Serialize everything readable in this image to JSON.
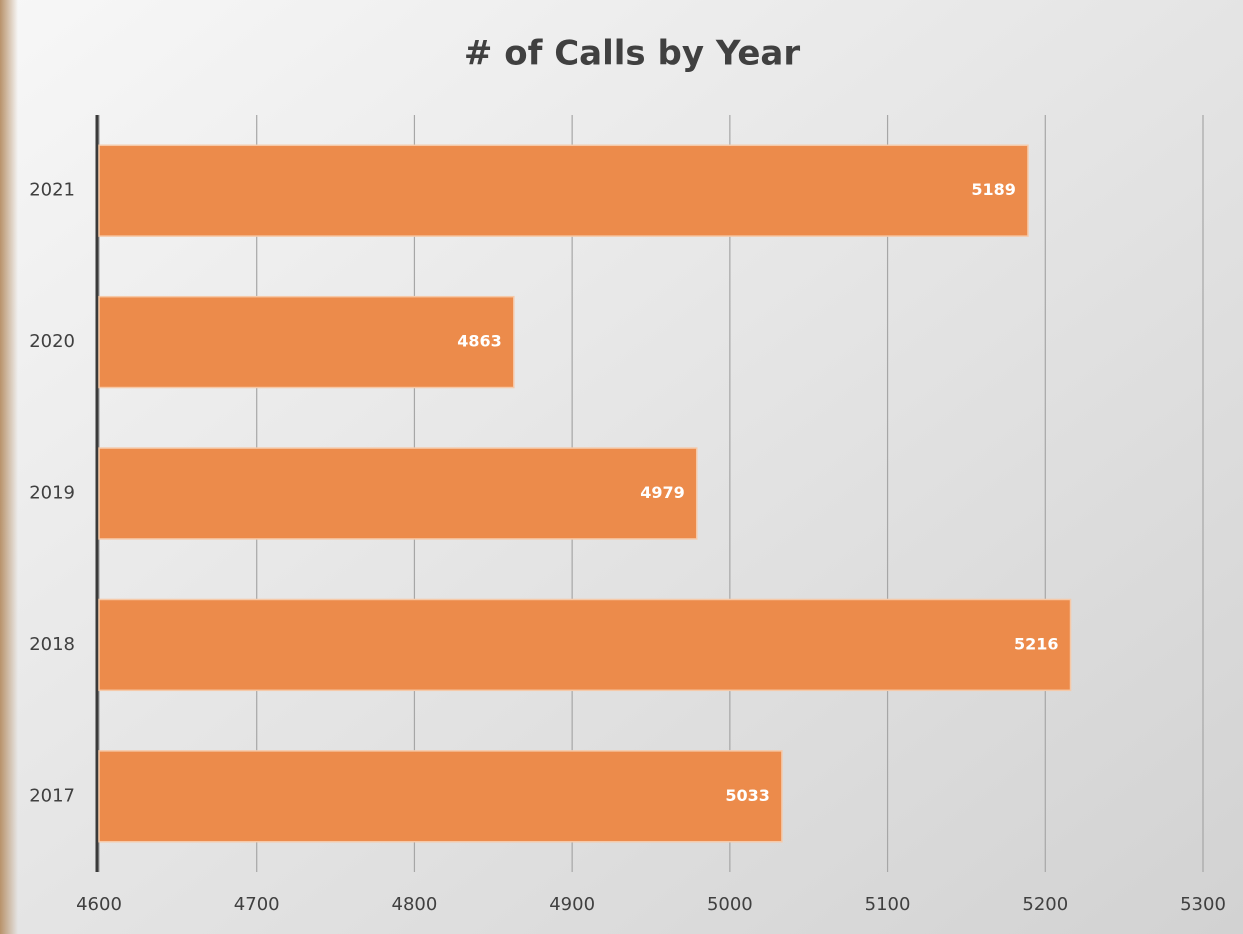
{
  "chart_data": {
    "type": "bar",
    "orientation": "horizontal",
    "title": "# of Calls by Year",
    "categories": [
      "2017",
      "2018",
      "2019",
      "2020",
      "2021"
    ],
    "values": [
      5033,
      5216,
      4979,
      4863,
      5189
    ],
    "color": "#ec8b4b",
    "xlim": [
      4600,
      5300
    ],
    "xticks": [
      4600,
      4700,
      4800,
      4900,
      5000,
      5100,
      5200,
      5300
    ],
    "grid": true
  }
}
